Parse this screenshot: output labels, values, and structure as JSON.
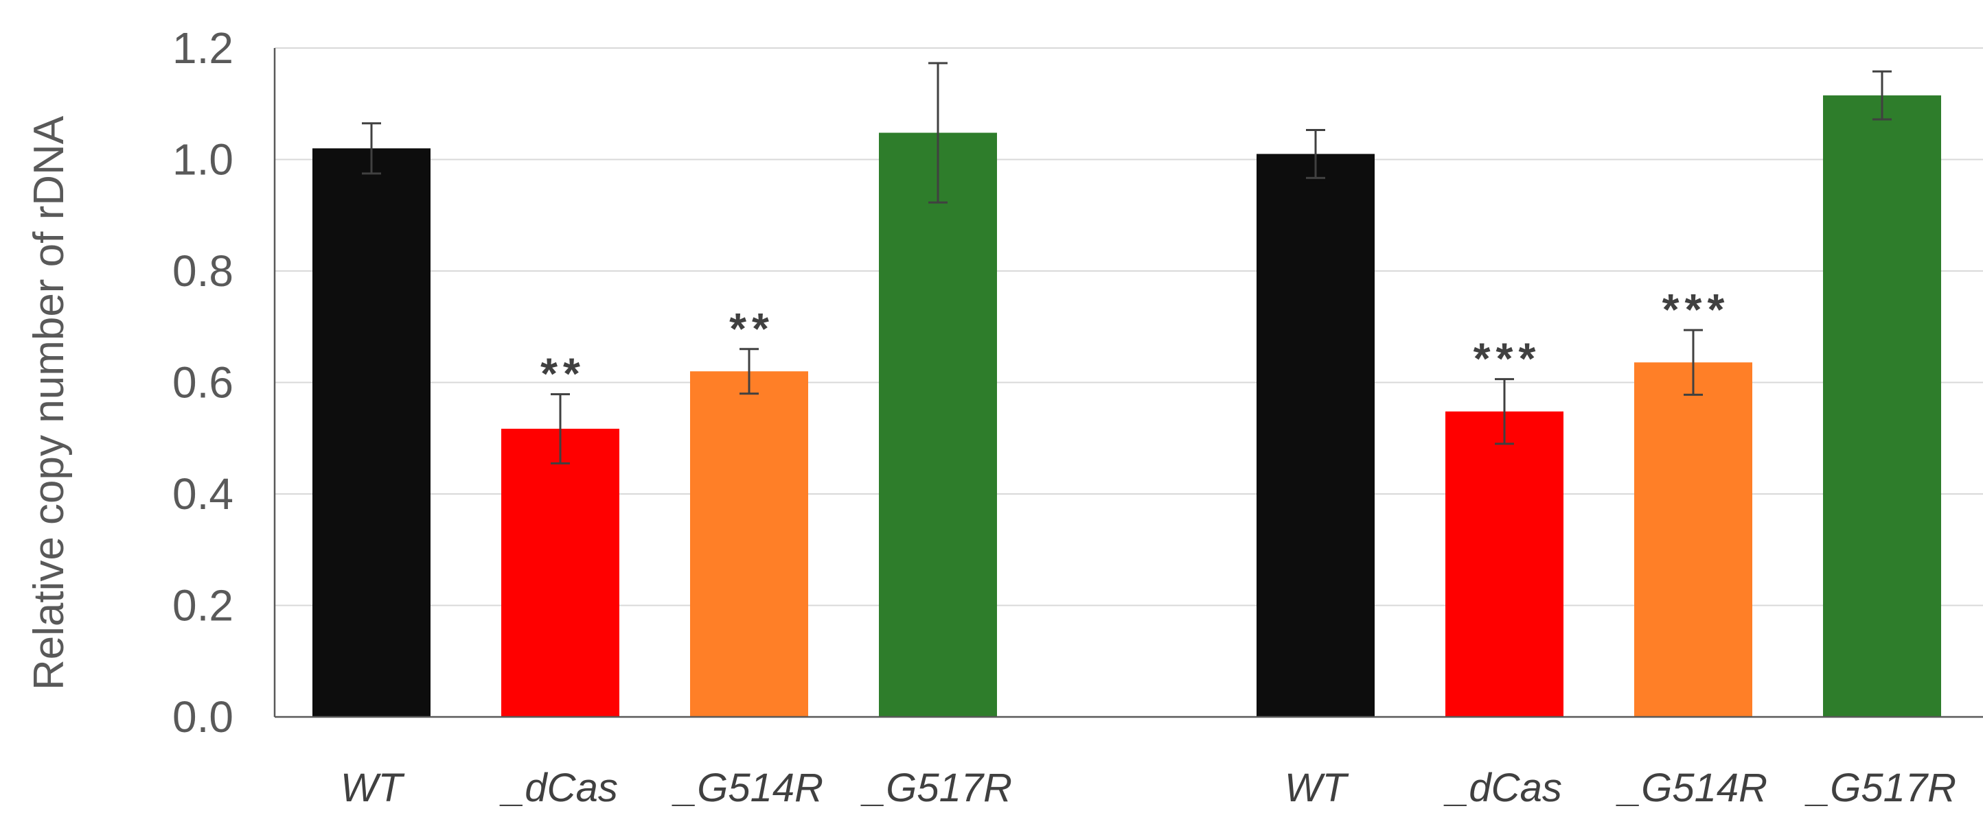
{
  "chart_data": {
    "type": "bar",
    "title": "",
    "xlabel": "",
    "ylabel": "Relative copy number of rDNA",
    "ylim": [
      0,
      1.2
    ],
    "yticks": [
      "0.0",
      "0.2",
      "0.4",
      "0.6",
      "0.8",
      "1.0",
      "1.2"
    ],
    "grid": true,
    "groups": [
      {
        "bars": [
          {
            "label": "WT",
            "value": 1.02,
            "error": 0.045,
            "color": "#0d0d0d",
            "sig": ""
          },
          {
            "label": "_dCas",
            "value": 0.517,
            "error": 0.062,
            "color": "#ff0000",
            "sig": "**"
          },
          {
            "label": "_G514R",
            "value": 0.62,
            "error": 0.04,
            "color": "#ff7f27",
            "sig": "**"
          },
          {
            "label": "_G517R",
            "value": 1.048,
            "error": 0.125,
            "color": "#2e7d2b",
            "sig": ""
          }
        ]
      },
      {
        "bars": [
          {
            "label": "WT",
            "value": 1.01,
            "error": 0.043,
            "color": "#0d0d0d",
            "sig": ""
          },
          {
            "label": "_dCas",
            "value": 0.548,
            "error": 0.058,
            "color": "#ff0000",
            "sig": "***"
          },
          {
            "label": "_G514R",
            "value": 0.636,
            "error": 0.058,
            "color": "#ff7f27",
            "sig": "***"
          },
          {
            "label": "_G517R",
            "value": 1.115,
            "error": 0.043,
            "color": "#2e7d2b",
            "sig": ""
          }
        ]
      }
    ]
  }
}
